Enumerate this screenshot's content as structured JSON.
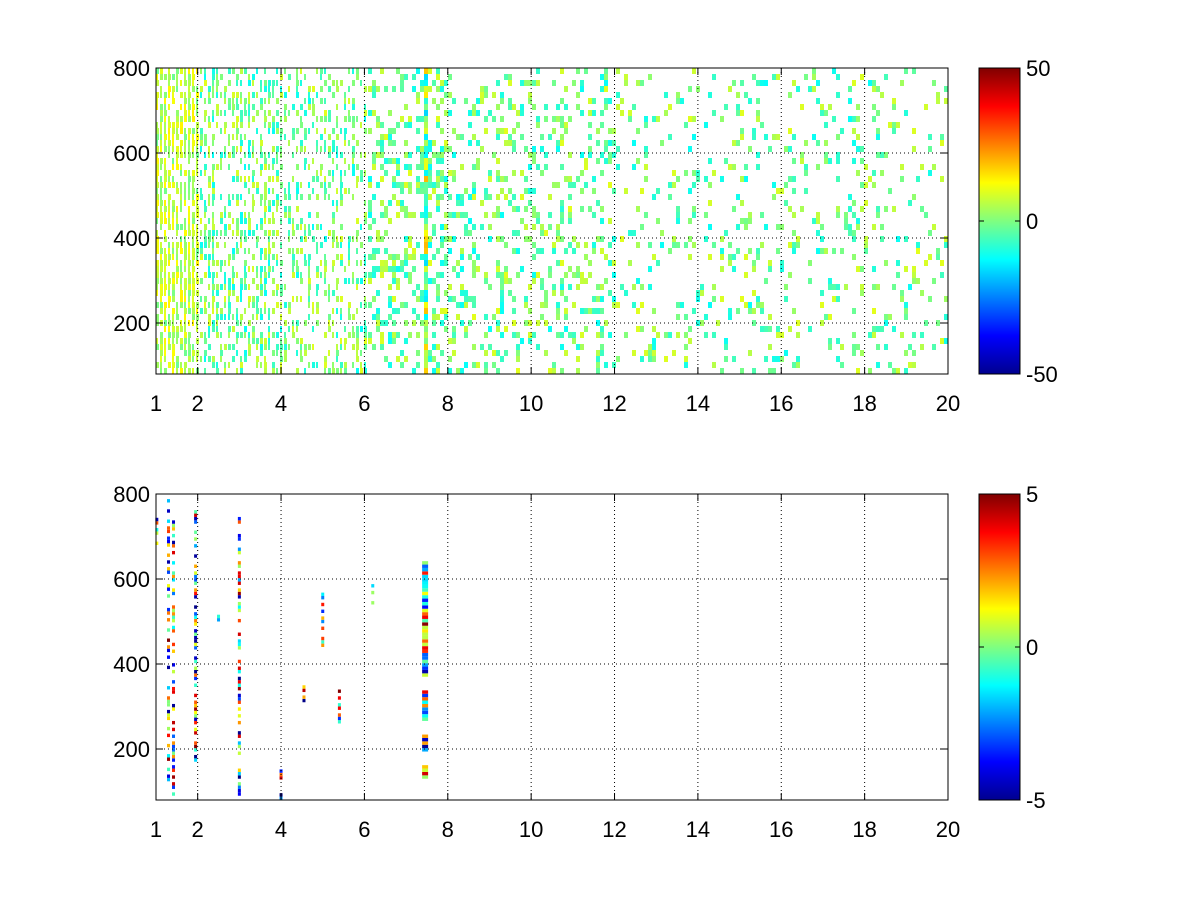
{
  "chart_data": [
    {
      "type": "heatmap",
      "title": "",
      "xlabel": "",
      "ylabel": "",
      "xlim": [
        1,
        20
      ],
      "ylim": [
        80,
        800
      ],
      "x_ticks": [
        1,
        2,
        4,
        6,
        8,
        10,
        12,
        14,
        16,
        18,
        20
      ],
      "x_tick_labels": [
        "1",
        "2",
        "4",
        "6",
        "8",
        "10",
        "12",
        "14",
        "16",
        "18",
        "20"
      ],
      "y_ticks": [
        200,
        400,
        600,
        800
      ],
      "y_tick_labels": [
        "200",
        "400",
        "600",
        "800"
      ],
      "grid": true,
      "grid_x": [
        2,
        4,
        6,
        8,
        10,
        12,
        14,
        16,
        18
      ],
      "grid_y": [
        200,
        400,
        600
      ],
      "colormap": "jet",
      "clim": [
        -50,
        50
      ],
      "colorbar_ticks": [
        -50,
        0,
        50
      ],
      "colorbar_tick_labels": [
        "-50",
        "0",
        "50"
      ],
      "colorbar_location": "right",
      "notes": "dense scatter of small cells mostly near 0 (cyan-green-yellow); many blank (NaN) cells; density decreases with x; strong column near x=7.4 and x=1.3"
    },
    {
      "type": "heatmap",
      "title": "",
      "xlabel": "",
      "ylabel": "",
      "xlim": [
        1,
        20
      ],
      "ylim": [
        80,
        800
      ],
      "x_ticks": [
        1,
        2,
        4,
        6,
        8,
        10,
        12,
        14,
        16,
        18,
        20
      ],
      "x_tick_labels": [
        "1",
        "2",
        "4",
        "6",
        "8",
        "10",
        "12",
        "14",
        "16",
        "18",
        "20"
      ],
      "y_ticks": [
        200,
        400,
        600,
        800
      ],
      "y_tick_labels": [
        "200",
        "400",
        "600",
        "800"
      ],
      "grid": true,
      "grid_x": [
        2,
        4,
        6,
        8,
        10,
        12,
        14,
        16,
        18
      ],
      "grid_y": [
        200,
        400,
        600
      ],
      "colormap": "jet",
      "clim": [
        -5,
        5
      ],
      "colorbar_ticks": [
        -5,
        0,
        5
      ],
      "colorbar_tick_labels": [
        "-5",
        "0",
        "5"
      ],
      "colorbar_location": "right",
      "notes": "mostly blank; sparse thin vertical streaks near x=1.0-2.0, 3.0, 4.0, 4.5, 5.0, 5.4, 6.2, and a prominent multicolor column at x=7.4"
    }
  ]
}
